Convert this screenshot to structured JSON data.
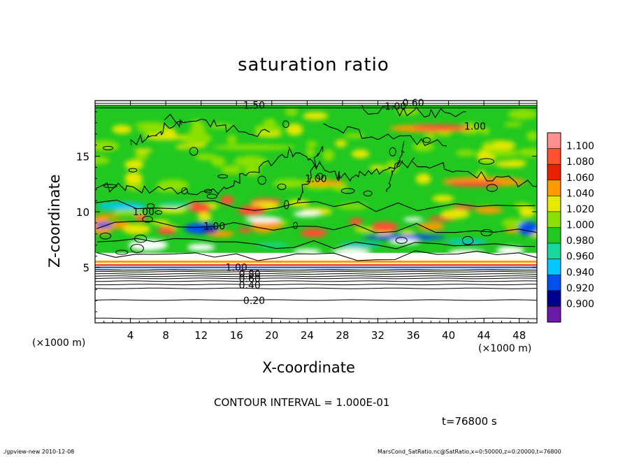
{
  "chart_data": {
    "type": "heatmap",
    "title": "saturation ratio",
    "xlabel": "X-coordinate",
    "ylabel": "Z-coordinate",
    "x_unit_label": "(×1000 m)",
    "xlim": [
      0,
      50
    ],
    "ylim": [
      0,
      20
    ],
    "x_ticks": [
      4,
      8,
      12,
      16,
      20,
      24,
      28,
      32,
      36,
      40,
      44,
      48
    ],
    "y_ticks": [
      5,
      10,
      15
    ],
    "colorbar": {
      "levels": [
        "1.100",
        "1.080",
        "1.060",
        "1.040",
        "1.020",
        "1.000",
        "0.980",
        "0.960",
        "0.940",
        "0.920",
        "0.900"
      ],
      "colors": [
        "#ff9090",
        "#ff5030",
        "#e82000",
        "#ff9a00",
        "#e8e800",
        "#8ce000",
        "#20c820",
        "#18d8a0",
        "#00c8ff",
        "#0050f0",
        "#000090",
        "#6a1aa8"
      ]
    },
    "contour_labels": [
      {
        "text": "0.20",
        "x": 18,
        "z": 2.0
      },
      {
        "text": "0.40",
        "x": 17.5,
        "z": 3.4
      },
      {
        "text": "0.60",
        "x": 17.5,
        "z": 4.0
      },
      {
        "text": "0.80",
        "x": 17.5,
        "z": 4.4
      },
      {
        "text": "1.00",
        "x": 16,
        "z": 5.0
      },
      {
        "text": "1.00",
        "x": 5.5,
        "z": 10.0
      },
      {
        "text": "1.00",
        "x": 13.5,
        "z": 8.7
      },
      {
        "text": "1.00",
        "x": 25,
        "z": 13.0
      },
      {
        "text": "1.00",
        "x": 43,
        "z": 17.7
      },
      {
        "text": "1.00",
        "x": 34,
        "z": 19.5
      },
      {
        "text": "0.60",
        "x": 36,
        "z": 19.8
      },
      {
        "text": "1.50",
        "x": 18,
        "z": 19.6
      }
    ],
    "contour_interval_text": "CONTOUR INTERVAL = 1.000E-01",
    "time_text": "t=76800 s"
  },
  "footer": {
    "left": "./gpview-new   2010-12-08",
    "right": "MarsCond_SatRatio.nc@SatRatio,x=0:50000,z=0:20000,t=76800"
  }
}
